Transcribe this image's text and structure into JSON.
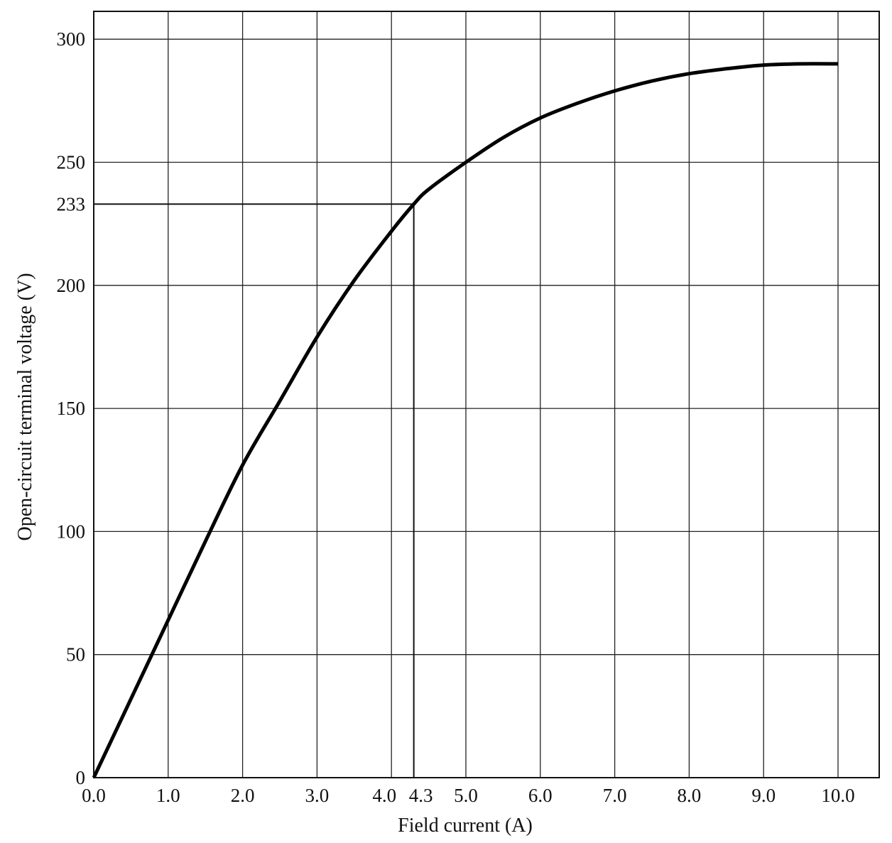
{
  "chart_data": {
    "type": "line",
    "title": "",
    "xlabel": "Field current (A)",
    "ylabel": "Open-circuit terminal voltage (V)",
    "xlim": [
      0,
      10.5
    ],
    "ylim": [
      0,
      311
    ],
    "grid": true,
    "x_gridlines": [
      0,
      1,
      2,
      3,
      4,
      5,
      6,
      7,
      8,
      9,
      10
    ],
    "y_gridlines": [
      0,
      50,
      100,
      150,
      200,
      250,
      300
    ],
    "x_ticks": [
      {
        "value": 0,
        "label": "0.0"
      },
      {
        "value": 1,
        "label": "1.0"
      },
      {
        "value": 2,
        "label": "2.0"
      },
      {
        "value": 3,
        "label": "3.0"
      },
      {
        "value": 4,
        "label": "4.0"
      },
      {
        "value": 4.3,
        "label": "4.3"
      },
      {
        "value": 5,
        "label": "5.0"
      },
      {
        "value": 6,
        "label": "6.0"
      },
      {
        "value": 7,
        "label": "7.0"
      },
      {
        "value": 8,
        "label": "8.0"
      },
      {
        "value": 9,
        "label": "9.0"
      },
      {
        "value": 10,
        "label": "10.0"
      }
    ],
    "y_ticks": [
      {
        "value": 0,
        "label": "0"
      },
      {
        "value": 50,
        "label": "50"
      },
      {
        "value": 100,
        "label": "100"
      },
      {
        "value": 150,
        "label": "150"
      },
      {
        "value": 200,
        "label": "200"
      },
      {
        "value": 233,
        "label": "233"
      },
      {
        "value": 250,
        "label": "250"
      },
      {
        "value": 300,
        "label": "300"
      }
    ],
    "series": [
      {
        "x": [
          0,
          0.5,
          1.0,
          1.5,
          2.0,
          2.5,
          3.0,
          3.5,
          4.0,
          4.3,
          4.5,
          5.0,
          5.5,
          6.0,
          6.5,
          7.0,
          7.5,
          8.0,
          8.5,
          9.0,
          9.5,
          10.0
        ],
        "y": [
          0,
          32,
          64,
          96,
          127,
          153,
          179,
          202,
          222,
          233,
          239,
          250,
          260,
          268,
          274,
          279,
          283,
          286,
          288,
          289.5,
          290,
          290
        ]
      }
    ],
    "annotations": [
      {
        "type": "guide",
        "x": 4.3,
        "y": 233
      }
    ]
  }
}
